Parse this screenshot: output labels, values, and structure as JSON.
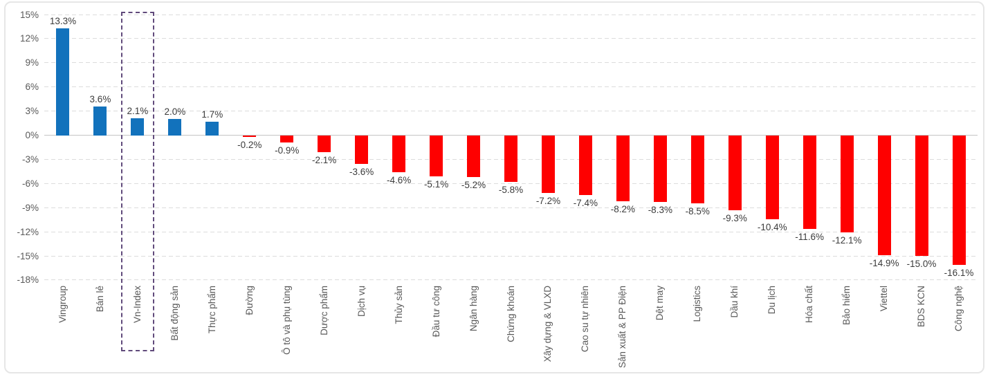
{
  "chart_data": {
    "type": "bar",
    "title": "",
    "orientation": "vertical",
    "categories": [
      "Vingroup",
      "Bán lẻ",
      "Vn-Index",
      "Bất động sản",
      "Thực phẩm",
      "Đường",
      "Ô tô và phụ tùng",
      "Dược phẩm",
      "Dịch vụ",
      "Thủy sản",
      "Đầu tư công",
      "Ngân hàng",
      "Chứng khoán",
      "Xây dựng & VLXD",
      "Cao su tự nhiên",
      "Sản xuất & PP Điện",
      "Dệt may",
      "Logistics",
      "Dầu khí",
      "Du lịch",
      "Hóa chất",
      "Bảo hiểm",
      "Viettel",
      "BDS KCN",
      "Công nghệ"
    ],
    "values": [
      13.3,
      3.6,
      2.1,
      2.0,
      1.7,
      -0.2,
      -0.9,
      -2.1,
      -3.6,
      -4.6,
      -5.1,
      -5.2,
      -5.8,
      -7.2,
      -7.4,
      -8.2,
      -8.3,
      -8.5,
      -9.3,
      -10.4,
      -11.6,
      -12.1,
      -14.9,
      -15.0,
      -16.1
    ],
    "data_labels": [
      "13.3%",
      "3.6%",
      "2.1%",
      "2.0%",
      "1.7%",
      "-0.2%",
      "-0.9%",
      "-2.1%",
      "-3.6%",
      "-4.6%",
      "-5.1%",
      "-5.2%",
      "-5.8%",
      "-7.2%",
      "-7.4%",
      "-8.2%",
      "-8.3%",
      "-8.5%",
      "-9.3%",
      "-10.4%",
      "-11.6%",
      "-12.1%",
      "-14.9%",
      "-15.0%",
      "-16.1%"
    ],
    "y_tick_labels": [
      "15%",
      "12%",
      "9%",
      "6%",
      "3%",
      "0%",
      "-3%",
      "-6%",
      "-9%",
      "-12%",
      "-15%",
      "-18%"
    ],
    "y_tick_values": [
      15,
      12,
      9,
      6,
      3,
      0,
      -3,
      -6,
      -9,
      -12,
      -15,
      -18
    ],
    "ylim": [
      -18,
      15
    ],
    "grid": "horizontal-dashed",
    "legend": "none",
    "xlabel": "",
    "ylabel": "",
    "colors": {
      "positive_bar": "#1272bc",
      "negative_bar": "#fe0000",
      "highlight_box": "#604a7b",
      "gridline": "#dcdcdc",
      "zero_axis_line": "#c3c3c3",
      "tick_label": "#595959",
      "data_label": "#3b3b3b"
    },
    "highlight": {
      "category": "Vn-Index",
      "index": 2,
      "style": "dashed-rectangle"
    }
  }
}
